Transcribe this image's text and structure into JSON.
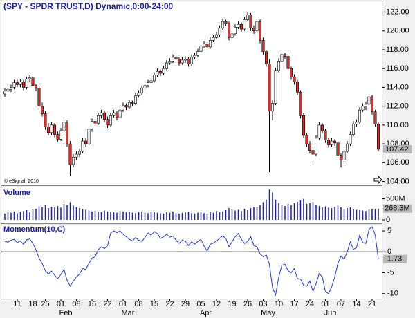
{
  "chart_data": {
    "type": "candlestick",
    "title": "(SPY - SPDR TRUST,D) Dynamic,0:00-24:00",
    "copyright": "© eSignal, 2010",
    "categories": [
      null,
      null,
      null,
      null,
      "11",
      null,
      null,
      null,
      null,
      "18",
      null,
      null,
      null,
      "25",
      null,
      null,
      null,
      null,
      "01",
      null,
      null,
      null,
      null,
      "08",
      null,
      null,
      null,
      null,
      "16",
      null,
      null,
      null,
      null,
      "22",
      null,
      null,
      null,
      null,
      "01",
      null,
      null,
      null,
      null,
      "08",
      null,
      null,
      null,
      null,
      "15",
      null,
      null,
      null,
      null,
      "22",
      null,
      null,
      null,
      null,
      "29",
      null,
      null,
      null,
      null,
      "05",
      null,
      null,
      null,
      null,
      "12",
      null,
      null,
      null,
      null,
      "19",
      null,
      null,
      null,
      null,
      "26",
      null,
      null,
      null,
      null,
      "03",
      null,
      null,
      null,
      null,
      "10",
      null,
      null,
      null,
      null,
      "17",
      null,
      null,
      null,
      null,
      "24",
      null,
      null,
      null,
      null,
      "01",
      null,
      null,
      null,
      null,
      "07",
      null,
      null,
      null,
      null,
      "14",
      null,
      null,
      null,
      null,
      "21",
      null,
      null
    ],
    "months": [
      null,
      null,
      null,
      null,
      null,
      null,
      null,
      null,
      null,
      null,
      null,
      null,
      null,
      null,
      null,
      null,
      null,
      null,
      "Feb",
      null,
      null,
      null,
      null,
      null,
      null,
      null,
      null,
      null,
      null,
      null,
      null,
      null,
      null,
      null,
      null,
      null,
      null,
      null,
      "Mar",
      null,
      null,
      null,
      null,
      null,
      null,
      null,
      null,
      null,
      null,
      null,
      null,
      null,
      null,
      null,
      null,
      null,
      null,
      null,
      null,
      null,
      null,
      null,
      null,
      "Apr",
      null,
      null,
      null,
      null,
      null,
      null,
      null,
      null,
      null,
      null,
      null,
      null,
      null,
      null,
      null,
      null,
      null,
      null,
      null,
      "May",
      null,
      null,
      null,
      null,
      null,
      null,
      null,
      null,
      null,
      null,
      null,
      null,
      null,
      null,
      null,
      null,
      null,
      null,
      null,
      "Jun",
      null,
      null,
      null,
      null,
      null,
      null,
      null,
      null,
      null,
      null,
      null,
      null,
      null,
      null,
      null,
      null,
      null
    ],
    "ohlc": [
      [
        113.3,
        113.9,
        113.0,
        113.6
      ],
      [
        113.6,
        114.1,
        113.4,
        113.8
      ],
      [
        113.8,
        114.3,
        113.5,
        114.0
      ],
      [
        114.0,
        114.8,
        113.8,
        114.5
      ],
      [
        114.5,
        114.8,
        114.0,
        114.3
      ],
      [
        114.3,
        114.9,
        114.0,
        114.6
      ],
      [
        114.6,
        114.8,
        113.7,
        114.0
      ],
      [
        114.0,
        115.1,
        113.8,
        114.9
      ],
      [
        114.9,
        115.3,
        114.6,
        115.0
      ],
      [
        115.0,
        115.2,
        114.0,
        114.2
      ],
      [
        114.2,
        114.4,
        113.6,
        113.9
      ],
      [
        113.9,
        114.1,
        111.8,
        112.0
      ],
      [
        112.0,
        112.4,
        110.9,
        111.2
      ],
      [
        111.2,
        111.5,
        109.5,
        109.8
      ],
      [
        109.8,
        110.2,
        108.9,
        109.2
      ],
      [
        109.2,
        110.3,
        108.9,
        110.0
      ],
      [
        110.0,
        110.2,
        108.7,
        109.0
      ],
      [
        109.0,
        109.3,
        108.2,
        108.5
      ],
      [
        108.5,
        109.7,
        108.3,
        109.4
      ],
      [
        109.4,
        110.6,
        109.1,
        110.3
      ],
      [
        110.3,
        110.5,
        107.7,
        108.0
      ],
      [
        108.0,
        108.3,
        104.6,
        105.8
      ],
      [
        105.8,
        106.9,
        105.5,
        106.6
      ],
      [
        106.6,
        107.2,
        106.3,
        106.9
      ],
      [
        106.9,
        107.5,
        106.6,
        107.2
      ],
      [
        107.2,
        108.6,
        107.0,
        108.3
      ],
      [
        108.3,
        108.6,
        107.7,
        108.0
      ],
      [
        108.0,
        109.9,
        107.8,
        109.6
      ],
      [
        109.6,
        110.7,
        109.3,
        110.4
      ],
      [
        110.4,
        110.8,
        109.9,
        110.2
      ],
      [
        110.2,
        111.3,
        110.0,
        111.0
      ],
      [
        111.0,
        111.6,
        110.7,
        111.3
      ],
      [
        111.3,
        111.5,
        110.3,
        110.6
      ],
      [
        110.6,
        110.9,
        109.7,
        110.0
      ],
      [
        110.0,
        111.3,
        109.8,
        111.0
      ],
      [
        111.0,
        111.6,
        110.8,
        111.3
      ],
      [
        111.3,
        111.5,
        110.5,
        110.8
      ],
      [
        110.8,
        111.9,
        110.6,
        111.6
      ],
      [
        111.6,
        112.4,
        111.4,
        112.1
      ],
      [
        112.1,
        112.3,
        111.6,
        111.9
      ],
      [
        111.9,
        112.7,
        111.7,
        112.4
      ],
      [
        112.4,
        112.6,
        112.0,
        112.3
      ],
      [
        112.3,
        113.4,
        112.1,
        113.1
      ],
      [
        113.1,
        113.7,
        112.9,
        113.4
      ],
      [
        113.4,
        114.2,
        113.2,
        113.9
      ],
      [
        113.9,
        114.5,
        113.7,
        114.2
      ],
      [
        114.2,
        114.8,
        114.0,
        114.5
      ],
      [
        114.5,
        115.0,
        114.3,
        114.7
      ],
      [
        114.7,
        115.6,
        114.5,
        115.3
      ],
      [
        115.3,
        116.0,
        115.1,
        115.7
      ],
      [
        115.7,
        115.9,
        115.2,
        115.5
      ],
      [
        115.5,
        116.3,
        115.3,
        116.0
      ],
      [
        116.0,
        116.9,
        115.8,
        116.6
      ],
      [
        116.6,
        117.1,
        116.4,
        116.8
      ],
      [
        116.8,
        117.5,
        116.6,
        117.2
      ],
      [
        117.2,
        117.4,
        116.8,
        117.0
      ],
      [
        117.0,
        117.2,
        116.3,
        116.6
      ],
      [
        116.6,
        117.2,
        116.4,
        116.9
      ],
      [
        116.9,
        117.3,
        116.6,
        117.0
      ],
      [
        117.0,
        117.2,
        116.2,
        116.5
      ],
      [
        116.5,
        117.5,
        116.3,
        117.2
      ],
      [
        117.2,
        117.7,
        117.0,
        117.4
      ],
      [
        117.4,
        118.1,
        117.2,
        117.8
      ],
      [
        117.8,
        118.7,
        117.6,
        118.4
      ],
      [
        118.4,
        118.9,
        118.2,
        118.6
      ],
      [
        118.6,
        118.8,
        118.0,
        118.3
      ],
      [
        118.3,
        119.3,
        118.1,
        119.0
      ],
      [
        119.0,
        119.6,
        118.8,
        119.3
      ],
      [
        119.3,
        119.9,
        119.1,
        119.6
      ],
      [
        119.6,
        120.6,
        119.4,
        120.3
      ],
      [
        120.3,
        121.3,
        120.1,
        121.0
      ],
      [
        121.0,
        121.2,
        120.5,
        120.8
      ],
      [
        120.8,
        121.0,
        119.0,
        119.3
      ],
      [
        119.3,
        120.0,
        119.0,
        119.7
      ],
      [
        119.7,
        120.7,
        119.5,
        120.4
      ],
      [
        120.4,
        121.0,
        120.2,
        120.7
      ],
      [
        120.7,
        120.9,
        119.9,
        120.2
      ],
      [
        120.2,
        121.5,
        120.0,
        121.2
      ],
      [
        121.2,
        122.0,
        121.0,
        121.7
      ],
      [
        121.7,
        121.9,
        120.0,
        120.3
      ],
      [
        120.3,
        120.6,
        119.7,
        120.0
      ],
      [
        120.0,
        121.3,
        119.8,
        121.0
      ],
      [
        121.0,
        121.2,
        118.7,
        119.0
      ],
      [
        119.0,
        119.3,
        117.5,
        117.8
      ],
      [
        117.8,
        118.0,
        116.2,
        116.5
      ],
      [
        116.5,
        117.0,
        105.0,
        111.5
      ],
      [
        111.5,
        112.6,
        110.5,
        112.3
      ],
      [
        112.3,
        116.1,
        112.1,
        115.8
      ],
      [
        115.8,
        117.1,
        115.6,
        116.8
      ],
      [
        116.8,
        117.8,
        116.6,
        117.5
      ],
      [
        117.5,
        117.7,
        117.0,
        117.3
      ],
      [
        117.3,
        117.5,
        115.7,
        116.0
      ],
      [
        116.0,
        116.2,
        114.8,
        115.1
      ],
      [
        115.1,
        115.4,
        114.3,
        114.6
      ],
      [
        114.6,
        114.8,
        113.2,
        113.5
      ],
      [
        113.5,
        113.7,
        110.7,
        111.0
      ],
      [
        111.0,
        111.3,
        108.6,
        108.9
      ],
      [
        108.9,
        109.2,
        107.7,
        108.0
      ],
      [
        108.0,
        108.3,
        107.0,
        107.3
      ],
      [
        107.3,
        107.5,
        106.0,
        106.9
      ],
      [
        106.9,
        108.9,
        106.7,
        108.6
      ],
      [
        108.6,
        110.3,
        108.4,
        110.0
      ],
      [
        110.0,
        110.2,
        109.1,
        109.4
      ],
      [
        109.4,
        109.6,
        108.1,
        108.4
      ],
      [
        108.4,
        108.6,
        107.6,
        107.9
      ],
      [
        107.9,
        108.6,
        107.7,
        108.3
      ],
      [
        108.3,
        108.5,
        107.8,
        108.1
      ],
      [
        108.1,
        108.3,
        106.5,
        106.8
      ],
      [
        106.8,
        107.0,
        105.5,
        106.3
      ],
      [
        106.3,
        107.5,
        106.1,
        107.2
      ],
      [
        107.2,
        108.3,
        107.0,
        108.0
      ],
      [
        108.0,
        109.3,
        107.8,
        109.0
      ],
      [
        109.0,
        110.4,
        108.8,
        110.1
      ],
      [
        110.1,
        110.6,
        109.8,
        110.3
      ],
      [
        110.3,
        111.9,
        110.1,
        111.6
      ],
      [
        111.6,
        112.3,
        111.4,
        112.0
      ],
      [
        112.0,
        112.5,
        111.6,
        112.2
      ],
      [
        112.2,
        113.3,
        112.0,
        113.0
      ],
      [
        113.0,
        113.2,
        111.1,
        111.4
      ],
      [
        111.4,
        111.6,
        109.8,
        110.1
      ],
      [
        110.1,
        110.3,
        107.2,
        107.42
      ]
    ],
    "up_color": "#ffffff",
    "down_color": "#e2302c",
    "ylim": [
      103.6,
      122.7
    ],
    "yticks": [
      {
        "value": 104,
        "label": "104.00"
      },
      {
        "value": 106,
        "label": "106.00"
      },
      {
        "value": 108,
        "label": "108.00"
      },
      {
        "value": 110,
        "label": "110.00"
      },
      {
        "value": 112,
        "label": "112.00"
      },
      {
        "value": 114,
        "label": "114.00"
      },
      {
        "value": 116,
        "label": "116.00"
      },
      {
        "value": 118,
        "label": "118.00"
      },
      {
        "value": 120,
        "label": "120.00"
      },
      {
        "value": 122,
        "label": "122.00"
      }
    ],
    "last_label": "107.42",
    "volume": {
      "name": "Volume",
      "color": "#1c1ca0",
      "values": [
        150,
        180,
        170,
        200,
        160,
        190,
        210,
        230,
        180,
        250,
        260,
        320,
        300,
        350,
        280,
        310,
        300,
        330,
        290,
        380,
        350,
        420,
        340,
        300,
        280,
        260,
        240,
        220,
        200,
        210,
        190,
        180,
        220,
        200,
        190,
        180,
        170,
        210,
        200,
        180,
        190,
        170,
        160,
        180,
        200,
        170,
        160,
        190,
        180,
        170,
        160,
        150,
        180,
        170,
        200,
        160,
        150,
        170,
        180,
        190,
        160,
        150,
        170,
        180,
        160,
        150,
        190,
        170,
        210,
        180,
        200,
        230,
        280,
        250,
        220,
        240,
        210,
        260,
        230,
        280,
        300,
        310,
        350,
        420,
        480,
        720,
        650,
        480,
        400,
        360,
        330,
        380,
        350,
        400,
        430,
        460,
        500,
        380,
        400,
        420,
        350,
        330,
        300,
        320,
        290,
        280,
        310,
        340,
        300,
        260,
        280,
        300,
        250,
        240,
        230,
        220,
        210,
        240,
        260,
        250,
        268.3
      ],
      "ylim": [
        0,
        740
      ],
      "yticks": [
        0,
        {
          "value": 500,
          "label": "500M"
        }
      ],
      "last_label": "268.3M"
    },
    "momentum": {
      "name": "Momentum(10,C)",
      "color": "#2233dd",
      "values": [
        2.5,
        2.3,
        2.8,
        3.0,
        2.2,
        2.6,
        1.8,
        2.9,
        3.1,
        2.0,
        0.5,
        -1.5,
        -2.8,
        -4.5,
        -5.3,
        -4.6,
        -5.6,
        -6.4,
        -5.4,
        -4.2,
        -6.8,
        -8.2,
        -7.0,
        -6.0,
        -5.3,
        -4.0,
        -4.2,
        -2.8,
        -1.5,
        -1.2,
        0.5,
        1.2,
        0.8,
        1.5,
        4.5,
        5.0,
        4.6,
        5.0,
        4.2,
        3.6,
        3.0,
        2.6,
        3.4,
        2.8,
        2.5,
        3.4,
        4.5,
        4.0,
        4.8,
        4.4,
        3.2,
        3.6,
        4.2,
        3.5,
        3.8,
        2.8,
        2.0,
        2.8,
        2.5,
        1.5,
        2.4,
        1.8,
        2.5,
        3.0,
        1.4,
        0.2,
        1.8,
        2.1,
        2.6,
        3.2,
        3.8,
        3.2,
        1.2,
        2.4,
        3.6,
        4.4,
        3.0,
        2.0,
        2.5,
        3.6,
        1.5,
        1.2,
        -0.5,
        -1.2,
        -0.8,
        -3.0,
        -8.6,
        -10.3,
        -6.0,
        -3.2,
        -3.0,
        -4.5,
        -5.0,
        -4.0,
        -6.4,
        -6.5,
        -8.0,
        -8.2,
        -7.0,
        -9.5,
        -7.6,
        -5.2,
        -6.0,
        -9.5,
        -10.0,
        -8.4,
        -6.0,
        -2.8,
        -1.0,
        -1.8,
        0.0,
        2.4,
        0.6,
        1.0,
        4.0,
        2.2,
        2.0,
        5.4,
        6.0,
        4.0,
        -1.73
      ],
      "ylim": [
        -11.2,
        6.5
      ],
      "yticks": [
        -10,
        -5,
        0,
        5
      ],
      "last_label": "-1.73"
    }
  }
}
